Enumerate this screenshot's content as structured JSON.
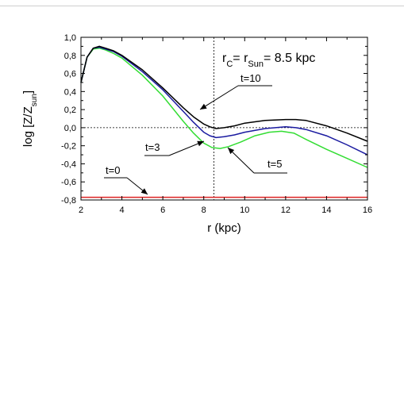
{
  "chart_data": {
    "type": "line",
    "xlabel": "r (kpc)",
    "ylabel": "log [Z/Zsun]",
    "xlim": [
      2,
      16
    ],
    "ylim": [
      -0.8,
      1.0
    ],
    "xticks": [
      "2",
      "4",
      "6",
      "8",
      "10",
      "12",
      "14",
      "16"
    ],
    "yticks": [
      "1,0",
      "0,8",
      "0,6",
      "0,4",
      "0,2",
      "0,0",
      "-0,2",
      "-0,4",
      "-0,6",
      "-0,8"
    ],
    "annotation_rc": "rC= rSun= 8.5 kpc",
    "reference_lines": {
      "vertical_x": 8.5,
      "horizontal_y": 0.0
    },
    "series": [
      {
        "name": "t=10",
        "color": "#000000",
        "x": [
          2,
          2.3,
          2.6,
          2.9,
          3.2,
          3.6,
          4,
          5,
          6,
          7,
          7.5,
          8,
          8.3,
          8.6,
          9,
          9.5,
          10,
          11,
          12,
          12.5,
          13,
          14,
          15,
          16
        ],
        "y": [
          0.5,
          0.78,
          0.88,
          0.9,
          0.88,
          0.85,
          0.8,
          0.64,
          0.44,
          0.22,
          0.12,
          0.04,
          0.01,
          -0.01,
          0.0,
          0.02,
          0.05,
          0.08,
          0.09,
          0.09,
          0.08,
          0.02,
          -0.06,
          -0.15
        ]
      },
      {
        "name": "t=5",
        "color": "#1a1aa0",
        "x": [
          2,
          2.3,
          2.6,
          2.9,
          3.2,
          3.6,
          4,
          5,
          6,
          7,
          7.5,
          8,
          8.3,
          8.6,
          9,
          9.5,
          10,
          11,
          12,
          12.5,
          13,
          14,
          15,
          16
        ],
        "y": [
          0.5,
          0.78,
          0.88,
          0.89,
          0.87,
          0.84,
          0.79,
          0.62,
          0.42,
          0.18,
          0.06,
          -0.05,
          -0.09,
          -0.11,
          -0.1,
          -0.08,
          -0.05,
          -0.01,
          0.01,
          0.0,
          -0.02,
          -0.09,
          -0.19,
          -0.3
        ]
      },
      {
        "name": "t=3",
        "color": "#33dd33",
        "x": [
          2,
          2.3,
          2.6,
          2.9,
          3.2,
          3.6,
          4,
          5,
          6,
          7,
          7.5,
          8,
          8.4,
          8.8,
          9.2,
          9.8,
          10.5,
          11.2,
          11.8,
          12.4,
          13,
          14,
          15,
          16
        ],
        "y": [
          0.5,
          0.78,
          0.87,
          0.88,
          0.86,
          0.82,
          0.77,
          0.58,
          0.35,
          0.07,
          -0.06,
          -0.17,
          -0.22,
          -0.23,
          -0.21,
          -0.16,
          -0.09,
          -0.05,
          -0.04,
          -0.06,
          -0.13,
          -0.24,
          -0.34,
          -0.44
        ]
      },
      {
        "name": "t=0",
        "color": "#dd2222",
        "x": [
          2,
          16
        ],
        "y": [
          -0.77,
          -0.77
        ]
      }
    ],
    "labels": [
      "t=10",
      "t=5",
      "t=3",
      "t=0"
    ]
  }
}
